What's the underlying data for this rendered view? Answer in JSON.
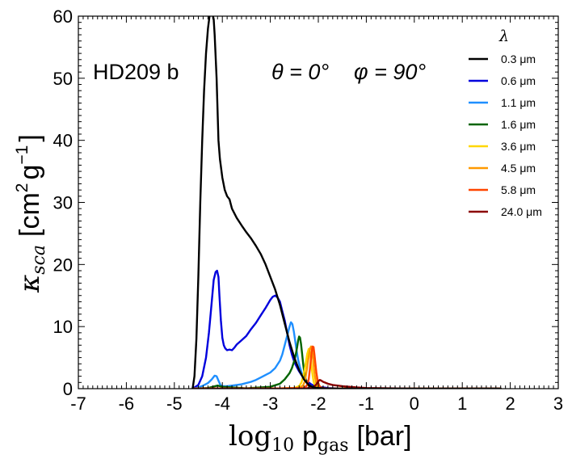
{
  "chart_data": {
    "type": "line",
    "xlabel_math": "log",
    "xlabel_sub": "10",
    "xlabel_p": "p",
    "xlabel_gas": "gas",
    "xlabel_unit": "[bar]",
    "ylabel_kappa": "κ",
    "ylabel_sub": "sca",
    "ylabel_unit_open": "[cm",
    "ylabel_sup2": "2",
    "ylabel_g": "g",
    "ylabel_supm1": "−1",
    "ylabel_close": "]",
    "xlim": [
      -7,
      3
    ],
    "ylim": [
      0,
      60
    ],
    "xticks": [
      -7,
      -6,
      -5,
      -4,
      -3,
      -2,
      -1,
      0,
      1,
      2,
      3
    ],
    "yticks": [
      0,
      10,
      20,
      30,
      40,
      50,
      60
    ],
    "annotation_planet": "HD209 b",
    "annotation_theta": "θ = 0°",
    "annotation_phi": "φ = 90°",
    "legend_title": "λ",
    "legend_position": "top-right",
    "series": [
      {
        "name": "0.3 μm",
        "color": "#000000",
        "x": [
          -4.62,
          -4.58,
          -4.54,
          -4.5,
          -4.46,
          -4.42,
          -4.38,
          -4.34,
          -4.3,
          -4.26,
          -4.24,
          -4.22,
          -4.2,
          -4.18,
          -4.16,
          -4.12,
          -4.08,
          -4.05,
          -4.0,
          -3.95,
          -3.9,
          -3.85,
          -3.8,
          -3.7,
          -3.6,
          -3.5,
          -3.4,
          -3.3,
          -3.2,
          -3.1,
          -3.0,
          -2.9,
          -2.8,
          -2.7,
          -2.6,
          -2.5,
          -2.4,
          -2.3,
          -2.2,
          -2.1,
          -2.0,
          -1.8,
          -1.5,
          -1.0,
          0.0,
          1.0,
          1.8
        ],
        "y": [
          0,
          2,
          8,
          18,
          30,
          40,
          48,
          54,
          58,
          60.5,
          61,
          60.8,
          60.2,
          59.5,
          57,
          50,
          40,
          37,
          34,
          32,
          31,
          30.5,
          29,
          27.5,
          26.3,
          25.2,
          24.2,
          23,
          21.7,
          20,
          18,
          16,
          13.5,
          10.5,
          7.5,
          5,
          3,
          1.5,
          0.6,
          0.2,
          0.1,
          0,
          0,
          0,
          0,
          0,
          0
        ]
      },
      {
        "name": "0.6 μm",
        "color": "#0000dd",
        "x": [
          -4.62,
          -4.5,
          -4.42,
          -4.34,
          -4.28,
          -4.22,
          -4.18,
          -4.14,
          -4.11,
          -4.08,
          -4.06,
          -4.03,
          -4.0,
          -3.97,
          -3.94,
          -3.9,
          -3.85,
          -3.8,
          -3.75,
          -3.7,
          -3.6,
          -3.5,
          -3.4,
          -3.3,
          -3.2,
          -3.1,
          -3.0,
          -2.95,
          -2.9,
          -2.85,
          -2.8,
          -2.75,
          -2.7,
          -2.65,
          -2.6,
          -2.55,
          -2.5,
          -2.45,
          -2.4,
          -2.35,
          -2.3,
          -2.25,
          -2.2,
          -2.15,
          -2.1,
          -2.0,
          -1.9,
          -1.8,
          -1.5,
          0.0,
          1.8
        ],
        "y": [
          0,
          0.6,
          2,
          5,
          9,
          14,
          17.5,
          18.8,
          19,
          18,
          15,
          11,
          8.2,
          7,
          6.5,
          6.2,
          6.3,
          6.2,
          6.6,
          7.1,
          7.8,
          8.5,
          9.6,
          10.6,
          11.8,
          13,
          14.3,
          14.8,
          15,
          14.7,
          14,
          12.5,
          11,
          9,
          7,
          5.5,
          4.3,
          3.5,
          2.8,
          2.2,
          1.7,
          1.3,
          1.0,
          0.7,
          0.5,
          0.3,
          0.2,
          0.1,
          0,
          0,
          0
        ]
      },
      {
        "name": "1.1 μm",
        "color": "#1f8fff",
        "x": [
          -4.62,
          -4.5,
          -4.4,
          -4.3,
          -4.22,
          -4.16,
          -4.12,
          -4.08,
          -4.04,
          -4.0,
          -3.9,
          -3.8,
          -3.7,
          -3.6,
          -3.5,
          -3.4,
          -3.3,
          -3.2,
          -3.1,
          -3.0,
          -2.9,
          -2.8,
          -2.75,
          -2.7,
          -2.65,
          -2.6,
          -2.57,
          -2.54,
          -2.51,
          -2.48,
          -2.45,
          -2.42,
          -2.38,
          -2.34,
          -2.3,
          -2.25,
          -2.2,
          -2.1,
          -2.0,
          -1.9,
          -1.5,
          0.0,
          1.8
        ],
        "y": [
          0,
          0.2,
          0.5,
          0.9,
          1.5,
          2.1,
          2.0,
          1.3,
          0.6,
          0.4,
          0.4,
          0.5,
          0.6,
          0.7,
          0.9,
          1.1,
          1.4,
          1.8,
          2.2,
          2.6,
          3.3,
          4.5,
          5.5,
          7,
          8.5,
          10,
          10.7,
          10.4,
          9.2,
          7.6,
          6,
          4.6,
          3.4,
          2.4,
          1.6,
          1,
          0.6,
          0.3,
          0.1,
          0,
          0,
          0,
          0
        ]
      },
      {
        "name": "1.6 μm",
        "color": "#006400",
        "x": [
          -4.62,
          -4.3,
          -4.1,
          -4.0,
          -3.5,
          -3.0,
          -2.8,
          -2.7,
          -2.6,
          -2.55,
          -2.5,
          -2.47,
          -2.44,
          -2.42,
          -2.4,
          -2.38,
          -2.36,
          -2.34,
          -2.32,
          -2.3,
          -2.28,
          -2.25,
          -2.2,
          -2.15,
          -2.1,
          -2.0,
          -1.8,
          -1.5,
          0.0,
          1.8
        ],
        "y": [
          0,
          0.1,
          0.5,
          0.3,
          0.05,
          0.3,
          0.8,
          1.5,
          2.5,
          3.3,
          4.5,
          5.5,
          6.8,
          7.8,
          8.4,
          8.2,
          7.2,
          5.8,
          4.3,
          3,
          2,
          1.2,
          0.5,
          0.2,
          0.1,
          0,
          0,
          0,
          0,
          0
        ]
      },
      {
        "name": "3.6 μm",
        "color": "#ffd700",
        "x": [
          -4.62,
          -3.0,
          -2.5,
          -2.4,
          -2.35,
          -2.3,
          -2.26,
          -2.23,
          -2.2,
          -2.18,
          -2.16,
          -2.14,
          -2.12,
          -2.1,
          -2.08,
          -2.05,
          -2.0,
          -1.9,
          -1.5,
          0.0,
          1.8
        ],
        "y": [
          0,
          0,
          0.1,
          0.4,
          1,
          2.5,
          4.2,
          5.6,
          6.4,
          6.2,
          5,
          3.5,
          2.2,
          1.2,
          0.7,
          0.3,
          0.1,
          0,
          0,
          0,
          0
        ]
      },
      {
        "name": "4.5 μm",
        "color": "#ff9900",
        "x": [
          -4.62,
          -3.0,
          -2.4,
          -2.32,
          -2.28,
          -2.24,
          -2.2,
          -2.17,
          -2.15,
          -2.13,
          -2.11,
          -2.09,
          -2.07,
          -2.05,
          -2.02,
          -2.0,
          -1.9,
          -1.5,
          0.0,
          1.8
        ],
        "y": [
          0,
          0,
          0.1,
          0.5,
          1.2,
          3,
          5.2,
          6.5,
          6.8,
          6.2,
          4.8,
          3.2,
          2,
          1.1,
          0.5,
          0.2,
          0,
          0,
          0,
          0
        ]
      },
      {
        "name": "5.8 μm",
        "color": "#ff4500",
        "x": [
          -4.62,
          -3.0,
          -2.3,
          -2.24,
          -2.2,
          -2.17,
          -2.14,
          -2.12,
          -2.1,
          -2.08,
          -2.06,
          -2.04,
          -2.02,
          -2.0,
          -1.98,
          -1.95,
          -1.9,
          -1.8,
          -1.5,
          0.0,
          1.8
        ],
        "y": [
          0,
          0,
          0.1,
          0.5,
          1.5,
          3.5,
          5.8,
          6.8,
          6.7,
          5.5,
          4,
          2.6,
          1.6,
          0.9,
          0.5,
          0.2,
          0.1,
          0,
          0,
          0,
          0
        ]
      },
      {
        "name": "24.0 μm",
        "color": "#8b0000",
        "x": [
          -4.62,
          -3.0,
          -2.3,
          -2.2,
          -2.1,
          -2.05,
          -2.0,
          -1.97,
          -1.94,
          -1.9,
          -1.8,
          -1.7,
          -1.5,
          -1.2,
          -1.0,
          -0.5,
          0.0,
          1.0,
          1.8
        ],
        "y": [
          0,
          0,
          0,
          0.1,
          0.3,
          0.6,
          1.2,
          1.4,
          1.3,
          1.1,
          0.8,
          0.6,
          0.4,
          0.2,
          0.1,
          0.05,
          0,
          0,
          0
        ]
      }
    ]
  }
}
